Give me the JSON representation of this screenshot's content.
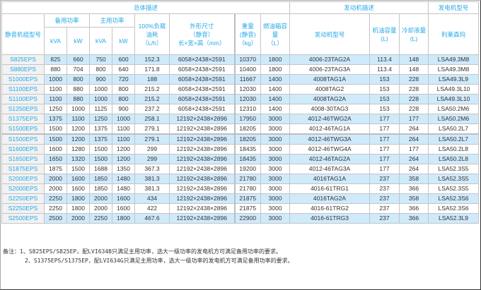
{
  "header": {
    "group_overall": "总体描述",
    "group_engine": "发动机描述",
    "group_alternator": "发电机型号",
    "model": "静音机组型号",
    "standby_power": "备用功率",
    "prime_power": "主用功率",
    "kva": "kVA",
    "kw": "kW",
    "fuel_consumption": [
      "100%负载",
      "油耗",
      "（L/h）"
    ],
    "dimensions": [
      "外形尺寸",
      "（静音）",
      "长×宽×高（mm）"
    ],
    "weight": [
      "重量",
      "(静音)",
      "（kg）"
    ],
    "tank": [
      "燃油箱容",
      "量",
      "（L）"
    ],
    "engine_model": "发动机型号",
    "oil_capacity": [
      "机油容量",
      "(L)"
    ],
    "coolant": [
      "冷却液量",
      "(L)"
    ],
    "alternator_brand": "利莱森玛"
  },
  "rows": [
    [
      "S825EPS",
      "825",
      "660",
      "750",
      "600",
      "152.3",
      "6058×2438×2591",
      "10370",
      "1800",
      "4006-23TAG2A",
      "113.4",
      "148",
      "LSA49.3M8"
    ],
    [
      "S880EPS",
      "880",
      "704",
      "800",
      "640",
      "171.8",
      "6058×2438×2591",
      "10400",
      "1800",
      "4006-23TAG3A",
      "113.4",
      "148",
      "LSA49.3M8"
    ],
    [
      "S1000EPS",
      "1000",
      "800",
      "900",
      "720",
      "188",
      "6058×2438×2591",
      "11667",
      "1400",
      "4008TAG1A",
      "153",
      "228",
      "LSA49.3L9"
    ],
    [
      "S1100EPS",
      "1100",
      "880",
      "1000",
      "800",
      "215.2",
      "6058×2438×2591",
      "12030",
      "1400",
      "4008TAG2",
      "153",
      "228",
      "LSA49.3L10"
    ],
    [
      "S1100EPS",
      "1100",
      "880",
      "1000",
      "800",
      "215.2",
      "6058×2438×2591",
      "12030",
      "1400",
      "4008TAG2A",
      "153",
      "228",
      "LSA49.3L10"
    ],
    [
      "S1250EPS",
      "1250",
      "1000",
      "1125",
      "900",
      "237.2",
      "6058×2438×2591",
      "12310",
      "1400",
      "4008-30TAG3",
      "153",
      "228",
      "LSA50.2M6"
    ],
    [
      "S1375EPS",
      "1375",
      "1100",
      "1250",
      "1000",
      "258.1",
      "12192×2438×2896",
      "17950",
      "3000",
      "4012-46TWG2A",
      "177",
      "177",
      "LSA50.2M6"
    ],
    [
      "S1500EPS",
      "1500",
      "1200",
      "1375",
      "1100",
      "279.1",
      "12192×2438×2896",
      "18205",
      "3000",
      "4012-46TAG1A",
      "177",
      "264",
      "LSA50.2L7"
    ],
    [
      "S1500EPS",
      "1500",
      "1200",
      "1375",
      "1100",
      "279.1",
      "12192×2438×2896",
      "18205",
      "3000",
      "4012-46TWG3A",
      "177",
      "264",
      "LSA50.2L7"
    ],
    [
      "S1600EPS",
      "1600",
      "1280",
      "1500",
      "1200",
      "299",
      "12192×2438×2896",
      "18435",
      "3000",
      "4012-46TWG4A",
      "177",
      "177",
      "LSA50.2L8"
    ],
    [
      "S1650EPS",
      "1650",
      "1320",
      "1500",
      "1200",
      "299",
      "12192×2438×2896",
      "18435",
      "3000",
      "4012-46TAG2A",
      "177",
      "264",
      "LSA50.2L8"
    ],
    [
      "S1875EPS",
      "1875",
      "1500",
      "1688",
      "1350",
      "367.3",
      "12192×2438×2896",
      "19200",
      "3000",
      "4012-46TAG3A",
      "177",
      "264",
      "LSA52.3S5"
    ],
    [
      "S2000EPS",
      "2000",
      "1600",
      "1850",
      "1480",
      "381.3",
      "12192×2438×2896",
      "21780",
      "3000",
      "4016TAG1A",
      "237",
      "358",
      "LSA52.3S5"
    ],
    [
      "S2000EPS",
      "2000",
      "1600",
      "1850",
      "1480",
      "381.3",
      "12192×2438×2896",
      "21780",
      "3000",
      "4016-61TRG1",
      "237",
      "366",
      "LSA52.3S5"
    ],
    [
      "S2250EPS",
      "2250",
      "1800",
      "2000",
      "1600",
      "434",
      "12192×2438×2896",
      "21875",
      "3000",
      "4016TAG2A",
      "237",
      "358",
      "LSA52.3S6"
    ],
    [
      "S2250EPS",
      "2250",
      "1800",
      "2000",
      "1600",
      "422",
      "12192×2438×2896",
      "21875",
      "3000",
      "4016-61TRG2",
      "237",
      "366",
      "LSA52.3S6"
    ],
    [
      "S2500EPS",
      "2500",
      "2000",
      "2250",
      "1800",
      "467.6",
      "12192×2438×2896",
      "22900",
      "3000",
      "4016-61TRG3",
      "237",
      "366",
      "LSA52.3L9"
    ]
  ],
  "notes": [
    "备注：1、S825EPS/S825EP，配LVI634B只满足主用功率，选大一级功率的发电机方可满足备用功率的要求。",
    "2、S1375EPS/S1375EP，配LVI634G只满足主用功率，选大一级功率的发电机方可满足备用功率的要求。"
  ],
  "colors": {
    "header_text": "#25a8e8",
    "stripe": "#cfeafb",
    "model_bg": "#f2f2f2",
    "border": "#c4c4c4"
  }
}
